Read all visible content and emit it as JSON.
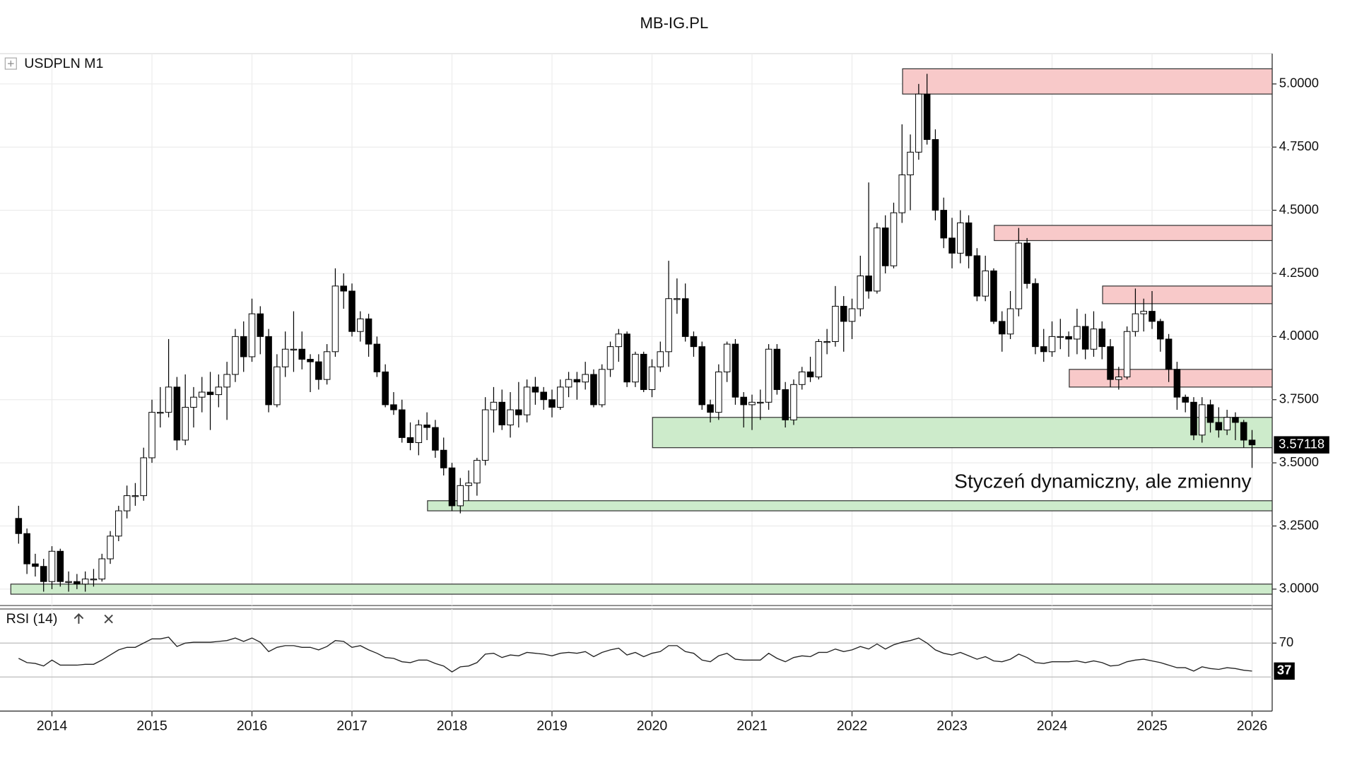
{
  "chart_data": {
    "type": "candlestick",
    "title": "MB-IG.PL",
    "symbol": "USDPLN M1",
    "annotation": {
      "text": "Styczeń dynamiczny, ale zmienny",
      "color": "#a21fe0"
    },
    "up_color": "#ffffff",
    "down_color": "#000000",
    "grid": true,
    "categories": [
      null,
      null,
      null,
      null,
      "2014",
      null,
      null,
      null,
      null,
      null,
      null,
      null,
      null,
      null,
      null,
      null,
      "2015",
      null,
      null,
      null,
      null,
      null,
      null,
      null,
      null,
      null,
      null,
      null,
      "2016",
      null,
      null,
      null,
      null,
      null,
      null,
      null,
      null,
      null,
      null,
      null,
      "2017",
      null,
      null,
      null,
      null,
      null,
      null,
      null,
      null,
      null,
      null,
      null,
      "2018",
      null,
      null,
      null,
      null,
      null,
      null,
      null,
      null,
      null,
      null,
      null,
      "2019",
      null,
      null,
      null,
      null,
      null,
      null,
      null,
      null,
      null,
      null,
      null,
      "2020",
      null,
      null,
      null,
      null,
      null,
      null,
      null,
      null,
      null,
      null,
      null,
      "2021",
      null,
      null,
      null,
      null,
      null,
      null,
      null,
      null,
      null,
      null,
      null,
      "2022",
      null,
      null,
      null,
      null,
      null,
      null,
      null,
      null,
      null,
      null,
      null,
      "2023",
      null,
      null,
      null,
      null,
      null,
      null,
      null,
      null,
      null,
      null,
      null,
      "2024",
      null,
      null,
      null,
      null,
      null,
      null,
      null,
      null,
      null,
      null,
      null,
      "2025",
      null,
      null,
      null,
      null,
      null,
      null,
      null,
      null,
      null,
      null,
      null,
      "2026"
    ],
    "ohlc": [
      [
        3.28,
        3.33,
        3.18,
        3.22
      ],
      [
        3.22,
        3.24,
        3.06,
        3.1
      ],
      [
        3.1,
        3.14,
        3.05,
        3.09
      ],
      [
        3.09,
        3.12,
        2.99,
        3.03
      ],
      [
        3.03,
        3.17,
        3.0,
        3.15
      ],
      [
        3.15,
        3.16,
        3.01,
        3.03
      ],
      [
        3.03,
        3.07,
        2.99,
        3.03
      ],
      [
        3.03,
        3.06,
        3.0,
        3.02
      ],
      [
        3.02,
        3.07,
        2.99,
        3.04
      ],
      [
        3.04,
        3.08,
        3.01,
        3.04
      ],
      [
        3.04,
        3.14,
        3.03,
        3.12
      ],
      [
        3.12,
        3.23,
        3.1,
        3.21
      ],
      [
        3.21,
        3.33,
        3.19,
        3.31
      ],
      [
        3.31,
        3.41,
        3.28,
        3.37
      ],
      [
        3.37,
        3.42,
        3.33,
        3.37
      ],
      [
        3.37,
        3.56,
        3.35,
        3.52
      ],
      [
        3.52,
        3.75,
        3.5,
        3.7
      ],
      [
        3.7,
        3.8,
        3.64,
        3.7
      ],
      [
        3.7,
        3.99,
        3.68,
        3.8
      ],
      [
        3.8,
        3.84,
        3.55,
        3.59
      ],
      [
        3.59,
        3.85,
        3.57,
        3.72
      ],
      [
        3.72,
        3.8,
        3.64,
        3.76
      ],
      [
        3.76,
        3.84,
        3.7,
        3.78
      ],
      [
        3.78,
        3.86,
        3.63,
        3.77
      ],
      [
        3.77,
        3.85,
        3.72,
        3.8
      ],
      [
        3.8,
        3.9,
        3.67,
        3.85
      ],
      [
        3.85,
        4.03,
        3.82,
        4.0
      ],
      [
        4.0,
        4.06,
        3.86,
        3.92
      ],
      [
        3.92,
        4.15,
        3.9,
        4.09
      ],
      [
        4.09,
        4.12,
        3.93,
        4.0
      ],
      [
        4.0,
        4.03,
        3.7,
        3.73
      ],
      [
        3.73,
        3.93,
        3.72,
        3.88
      ],
      [
        3.88,
        4.02,
        3.84,
        3.95
      ],
      [
        3.95,
        4.1,
        3.86,
        3.95
      ],
      [
        3.95,
        4.02,
        3.87,
        3.91
      ],
      [
        3.91,
        3.93,
        3.78,
        3.9
      ],
      [
        3.9,
        3.93,
        3.79,
        3.83
      ],
      [
        3.83,
        3.97,
        3.81,
        3.94
      ],
      [
        3.94,
        4.27,
        3.92,
        4.2
      ],
      [
        4.2,
        4.25,
        4.11,
        4.18
      ],
      [
        4.18,
        4.21,
        4.0,
        4.02
      ],
      [
        4.02,
        4.1,
        3.98,
        4.07
      ],
      [
        4.07,
        4.09,
        3.92,
        3.97
      ],
      [
        3.97,
        4.0,
        3.84,
        3.86
      ],
      [
        3.86,
        3.89,
        3.72,
        3.73
      ],
      [
        3.73,
        3.78,
        3.69,
        3.71
      ],
      [
        3.71,
        3.75,
        3.58,
        3.6
      ],
      [
        3.6,
        3.66,
        3.55,
        3.58
      ],
      [
        3.58,
        3.67,
        3.53,
        3.65
      ],
      [
        3.65,
        3.7,
        3.59,
        3.64
      ],
      [
        3.64,
        3.67,
        3.52,
        3.55
      ],
      [
        3.55,
        3.6,
        3.45,
        3.48
      ],
      [
        3.48,
        3.5,
        3.31,
        3.33
      ],
      [
        3.33,
        3.44,
        3.3,
        3.41
      ],
      [
        3.41,
        3.47,
        3.35,
        3.42
      ],
      [
        3.42,
        3.52,
        3.37,
        3.51
      ],
      [
        3.51,
        3.76,
        3.49,
        3.71
      ],
      [
        3.71,
        3.8,
        3.62,
        3.74
      ],
      [
        3.74,
        3.79,
        3.63,
        3.65
      ],
      [
        3.65,
        3.78,
        3.6,
        3.71
      ],
      [
        3.71,
        3.82,
        3.64,
        3.69
      ],
      [
        3.69,
        3.83,
        3.66,
        3.8
      ],
      [
        3.8,
        3.84,
        3.73,
        3.78
      ],
      [
        3.78,
        3.8,
        3.71,
        3.75
      ],
      [
        3.75,
        3.79,
        3.68,
        3.72
      ],
      [
        3.72,
        3.83,
        3.71,
        3.8
      ],
      [
        3.8,
        3.86,
        3.76,
        3.83
      ],
      [
        3.83,
        3.86,
        3.75,
        3.82
      ],
      [
        3.82,
        3.9,
        3.79,
        3.85
      ],
      [
        3.85,
        3.87,
        3.72,
        3.73
      ],
      [
        3.73,
        3.89,
        3.72,
        3.87
      ],
      [
        3.87,
        3.98,
        3.84,
        3.96
      ],
      [
        3.96,
        4.03,
        3.9,
        4.01
      ],
      [
        4.01,
        4.02,
        3.8,
        3.82
      ],
      [
        3.82,
        3.94,
        3.8,
        3.93
      ],
      [
        3.93,
        3.94,
        3.78,
        3.79
      ],
      [
        3.79,
        3.91,
        3.76,
        3.88
      ],
      [
        3.88,
        3.98,
        3.86,
        3.94
      ],
      [
        3.94,
        4.3,
        3.88,
        4.15
      ],
      [
        4.15,
        4.23,
        4.09,
        4.15
      ],
      [
        4.15,
        4.21,
        3.98,
        4.0
      ],
      [
        4.0,
        4.02,
        3.92,
        3.96
      ],
      [
        3.96,
        3.98,
        3.71,
        3.73
      ],
      [
        3.73,
        3.75,
        3.66,
        3.7
      ],
      [
        3.7,
        3.89,
        3.67,
        3.86
      ],
      [
        3.86,
        3.98,
        3.82,
        3.97
      ],
      [
        3.97,
        3.99,
        3.73,
        3.76
      ],
      [
        3.76,
        3.78,
        3.64,
        3.73
      ],
      [
        3.73,
        3.77,
        3.63,
        3.74
      ],
      [
        3.74,
        3.79,
        3.67,
        3.74
      ],
      [
        3.74,
        3.97,
        3.71,
        3.95
      ],
      [
        3.95,
        3.97,
        3.77,
        3.79
      ],
      [
        3.79,
        3.82,
        3.64,
        3.67
      ],
      [
        3.67,
        3.83,
        3.65,
        3.81
      ],
      [
        3.81,
        3.88,
        3.79,
        3.86
      ],
      [
        3.86,
        3.92,
        3.82,
        3.84
      ],
      [
        3.84,
        3.99,
        3.83,
        3.98
      ],
      [
        3.98,
        4.03,
        3.93,
        3.98
      ],
      [
        3.98,
        4.2,
        3.96,
        4.12
      ],
      [
        4.12,
        4.16,
        3.94,
        4.06
      ],
      [
        4.06,
        4.15,
        3.99,
        4.11
      ],
      [
        4.11,
        4.32,
        4.08,
        4.24
      ],
      [
        4.24,
        4.61,
        4.15,
        4.18
      ],
      [
        4.18,
        4.45,
        4.17,
        4.43
      ],
      [
        4.43,
        4.48,
        4.25,
        4.28
      ],
      [
        4.28,
        4.53,
        4.27,
        4.49
      ],
      [
        4.49,
        4.84,
        4.45,
        4.64
      ],
      [
        4.64,
        4.8,
        4.5,
        4.73
      ],
      [
        4.73,
        5.0,
        4.7,
        4.96
      ],
      [
        4.96,
        5.04,
        4.76,
        4.78
      ],
      [
        4.78,
        4.82,
        4.46,
        4.5
      ],
      [
        4.5,
        4.55,
        4.35,
        4.39
      ],
      [
        4.39,
        4.47,
        4.27,
        4.33
      ],
      [
        4.33,
        4.5,
        4.29,
        4.45
      ],
      [
        4.45,
        4.48,
        4.27,
        4.32
      ],
      [
        4.32,
        4.35,
        4.14,
        4.16
      ],
      [
        4.16,
        4.32,
        4.14,
        4.26
      ],
      [
        4.26,
        4.27,
        4.05,
        4.06
      ],
      [
        4.06,
        4.1,
        3.94,
        4.01
      ],
      [
        4.01,
        4.18,
        3.99,
        4.11
      ],
      [
        4.11,
        4.43,
        4.08,
        4.37
      ],
      [
        4.37,
        4.39,
        4.19,
        4.21
      ],
      [
        4.21,
        4.23,
        3.93,
        3.96
      ],
      [
        3.96,
        4.03,
        3.9,
        3.94
      ],
      [
        3.94,
        4.06,
        3.92,
        4.0
      ],
      [
        4.0,
        4.07,
        3.95,
        4.0
      ],
      [
        4.0,
        4.02,
        3.92,
        3.99
      ],
      [
        3.99,
        4.11,
        3.93,
        4.04
      ],
      [
        4.04,
        4.09,
        3.91,
        3.95
      ],
      [
        3.95,
        4.1,
        3.92,
        4.03
      ],
      [
        4.03,
        4.06,
        3.91,
        3.96
      ],
      [
        3.96,
        3.99,
        3.8,
        3.83
      ],
      [
        3.83,
        3.88,
        3.79,
        3.84
      ],
      [
        3.84,
        4.04,
        3.83,
        4.02
      ],
      [
        4.02,
        4.19,
        4.0,
        4.09
      ],
      [
        4.09,
        4.15,
        4.02,
        4.1
      ],
      [
        4.1,
        4.18,
        4.03,
        4.06
      ],
      [
        4.06,
        4.07,
        3.94,
        3.99
      ],
      [
        3.99,
        4.01,
        3.82,
        3.87
      ],
      [
        3.87,
        3.9,
        3.71,
        3.76
      ],
      [
        3.76,
        3.77,
        3.7,
        3.74
      ],
      [
        3.74,
        3.76,
        3.59,
        3.61
      ],
      [
        3.61,
        3.76,
        3.58,
        3.73
      ],
      [
        3.73,
        3.75,
        3.62,
        3.66
      ],
      [
        3.66,
        3.72,
        3.6,
        3.63
      ],
      [
        3.63,
        3.71,
        3.61,
        3.68
      ],
      [
        3.68,
        3.7,
        3.59,
        3.66
      ],
      [
        3.66,
        3.67,
        3.56,
        3.59
      ],
      [
        3.59,
        3.63,
        3.48,
        3.57118
      ]
    ],
    "ylim": [
      2.935,
      5.12
    ],
    "yticks": [
      {
        "value": 3,
        "label": "3.0000"
      },
      {
        "value": 3.25,
        "label": "3.2500"
      },
      {
        "value": 3.5,
        "label": "3.5000"
      },
      {
        "value": 3.75,
        "label": "3.7500"
      },
      {
        "value": 4,
        "label": "4.0000"
      },
      {
        "value": 4.25,
        "label": "4.2500"
      },
      {
        "value": 4.5,
        "label": "4.5000"
      },
      {
        "value": 4.75,
        "label": "4.7500"
      },
      {
        "value": 5,
        "label": "5.0000"
      }
    ],
    "zones": [
      {
        "range": [
          4.96,
          5.06
        ],
        "start": 107,
        "color": "#f8c9c9"
      },
      {
        "range": [
          4.38,
          4.44
        ],
        "start": 118,
        "color": "#f8c9c9"
      },
      {
        "range": [
          4.13,
          4.2
        ],
        "start": 131,
        "color": "#f8c9c9"
      },
      {
        "range": [
          3.8,
          3.87
        ],
        "start": 127,
        "color": "#f8c9c9"
      },
      {
        "range": [
          3.56,
          3.68
        ],
        "start": 77,
        "color": "#cdebcb"
      },
      {
        "range": [
          3.31,
          3.35
        ],
        "start": 50,
        "color": "#cdebcb"
      },
      {
        "range": [
          2.98,
          3.02
        ],
        "start": 0,
        "color": "#cdebcb"
      }
    ],
    "rsi": {
      "title": "RSI (14)",
      "ylim": [
        0,
        100
      ],
      "yticks": [
        70
      ],
      "levels": [
        70,
        30
      ],
      "values": [
        52,
        47,
        46,
        43,
        50,
        44,
        44,
        44,
        45,
        45,
        50,
        56,
        62,
        65,
        65,
        70,
        75,
        75,
        77,
        66,
        70,
        71,
        71,
        71,
        72,
        73,
        76,
        72,
        76,
        71,
        60,
        65,
        67,
        67,
        65,
        65,
        62,
        66,
        73,
        72,
        65,
        67,
        62,
        58,
        53,
        52,
        48,
        47,
        50,
        50,
        46,
        43,
        36,
        42,
        43,
        47,
        57,
        58,
        53,
        56,
        55,
        59,
        58,
        57,
        55,
        58,
        59,
        58,
        60,
        54,
        59,
        62,
        64,
        56,
        59,
        54,
        58,
        60,
        67,
        67,
        60,
        58,
        50,
        48,
        55,
        58,
        51,
        50,
        50,
        50,
        58,
        52,
        48,
        53,
        55,
        54,
        59,
        59,
        63,
        60,
        62,
        66,
        63,
        69,
        63,
        68,
        71,
        73,
        76,
        70,
        62,
        58,
        56,
        59,
        55,
        51,
        54,
        49,
        48,
        51,
        57,
        53,
        47,
        46,
        48,
        48,
        48,
        49,
        47,
        49,
        47,
        43,
        44,
        48,
        50,
        51,
        49,
        47,
        44,
        41,
        41,
        37,
        42,
        40,
        39,
        41,
        40,
        38,
        37
      ]
    }
  }
}
